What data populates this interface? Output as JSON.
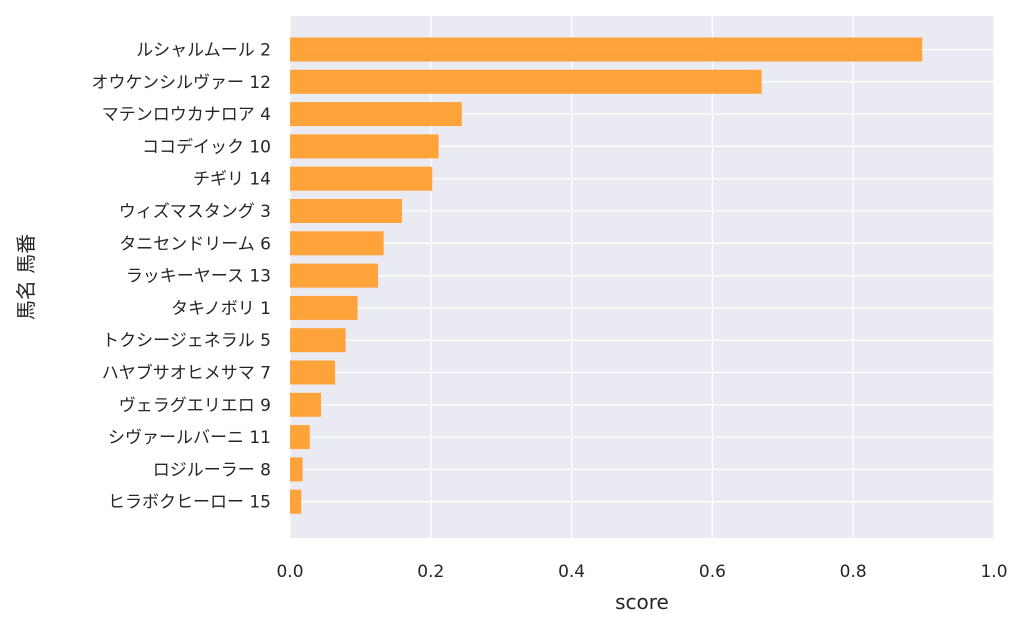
{
  "colors": {
    "plot_background": "#eaeaf2",
    "grid": "#ffffff",
    "bar": "#ff9f2e"
  },
  "chart_data": {
    "type": "bar",
    "orientation": "horizontal",
    "xlabel": "score",
    "ylabel": "馬名 馬番",
    "xlim": [
      0,
      1.0
    ],
    "xticks": [
      "0.0",
      "0.2",
      "0.4",
      "0.6",
      "0.8",
      "1.0"
    ],
    "grid": true,
    "categories": [
      "ルシャルムール 2",
      "オウケンシルヴァー 12",
      "マテンロウカナロア 4",
      "ココデイック 10",
      "チギリ 14",
      "ウィズマスタング 3",
      "タニセンドリーム 6",
      "ラッキーヤース 13",
      "タキノボリ 1",
      "トクシージェネラル 5",
      "ハヤブサオヒメサマ 7",
      "ヴェラグエリエロ 9",
      "シヴァールバーニ 11",
      "ロジルーラー 8",
      "ヒラボクヒーロー 15"
    ],
    "values": [
      0.898,
      0.67,
      0.244,
      0.211,
      0.202,
      0.159,
      0.133,
      0.125,
      0.096,
      0.079,
      0.064,
      0.044,
      0.028,
      0.018,
      0.016
    ]
  }
}
